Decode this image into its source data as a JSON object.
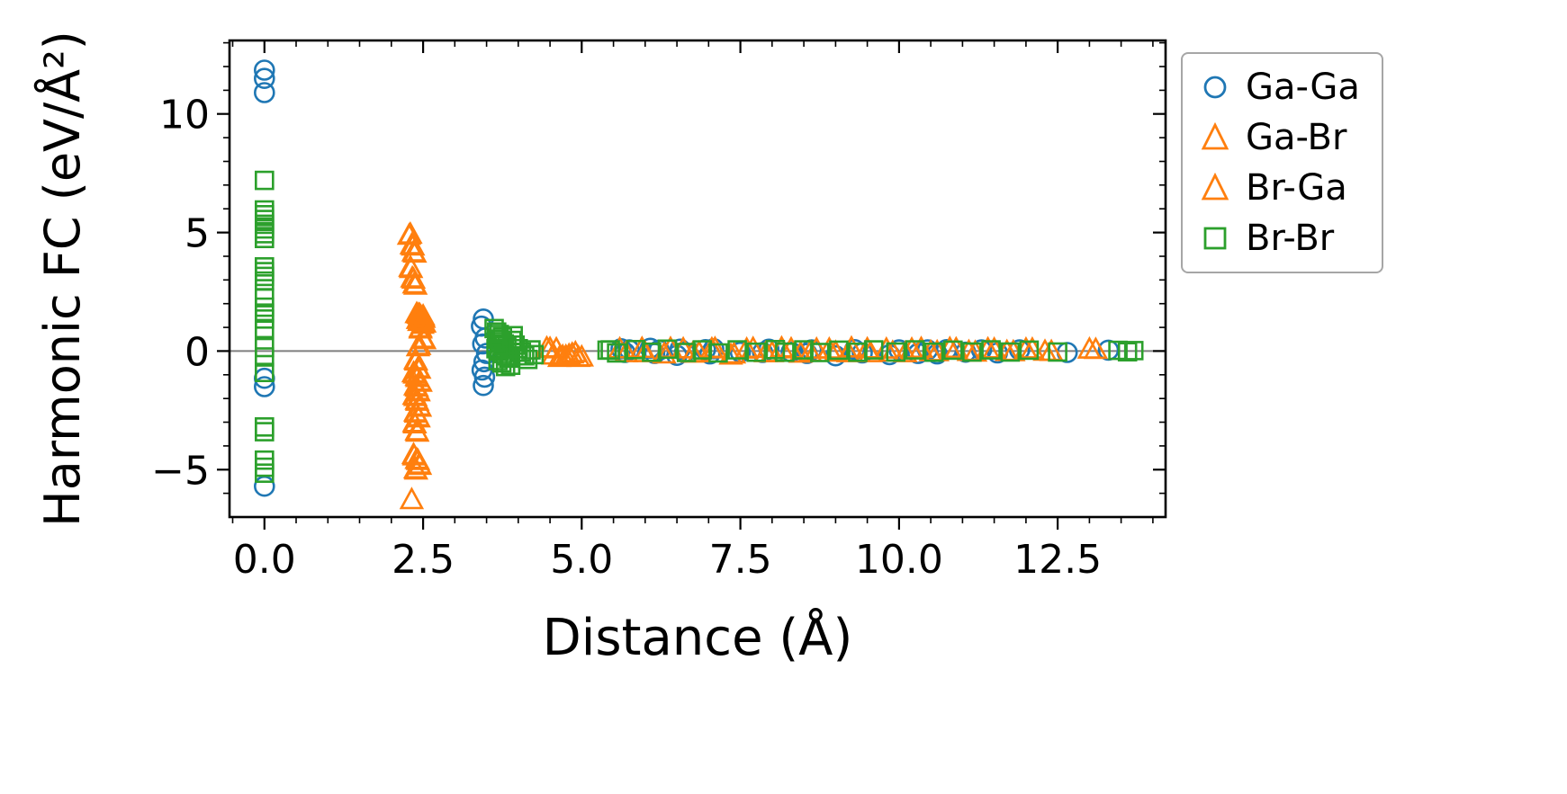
{
  "figure": {
    "background": "#ffffff"
  },
  "chart_data": {
    "type": "scatter",
    "title": "",
    "xlabel": "Distance (Å)",
    "ylabel": "Harmonic FC (eV/Å²)",
    "xlim": [
      -0.55,
      14.2
    ],
    "ylim": [
      -7.0,
      13.1
    ],
    "grid": false,
    "legend_position": "upper-right-outside",
    "x_ticks": {
      "values": [
        0,
        2.5,
        5,
        7.5,
        10,
        12.5
      ],
      "labels": [
        "0.0",
        "2.5",
        "5.0",
        "7.5",
        "10.0",
        "12.5"
      ]
    },
    "y_ticks": {
      "values": [
        -5,
        0,
        5,
        10
      ],
      "labels": [
        "−5",
        "0",
        "5",
        "10"
      ]
    },
    "minor_tick_step": {
      "x": 0.5,
      "y": 1
    },
    "zero_line": {
      "y": 0,
      "color": "#7f7f7f"
    },
    "series": [
      {
        "id": "ga-ga",
        "name": "Ga-Ga",
        "marker": "circle",
        "color": "#1f77b4",
        "points": [
          [
            0,
            11.85
          ],
          [
            0,
            11.5
          ],
          [
            0,
            10.9
          ],
          [
            0,
            -1.15
          ],
          [
            0,
            -1.5
          ],
          [
            0,
            -5.7
          ],
          [
            3.45,
            1.35
          ],
          [
            3.42,
            1.05
          ],
          [
            3.48,
            0.55
          ],
          [
            3.44,
            0.3
          ],
          [
            3.5,
            -0.1
          ],
          [
            3.46,
            -0.45
          ],
          [
            3.43,
            -0.8
          ],
          [
            3.47,
            -1.1
          ],
          [
            3.45,
            -1.45
          ],
          [
            5.62,
            0.1
          ],
          [
            5.68,
            -0.06
          ],
          [
            5.75,
            0.05
          ],
          [
            6.08,
            0.12
          ],
          [
            6.15,
            -0.1
          ],
          [
            6.22,
            0.04
          ],
          [
            6.5,
            -0.18
          ],
          [
            6.55,
            0.08
          ],
          [
            6.62,
            -0.05
          ],
          [
            6.95,
            0.06
          ],
          [
            7.02,
            -0.12
          ],
          [
            7.08,
            0.1
          ],
          [
            7.5,
            -0.05
          ],
          [
            7.85,
            -0.06
          ],
          [
            7.95,
            0.08
          ],
          [
            8.3,
            -0.04
          ],
          [
            8.55,
            -0.1
          ],
          [
            8.62,
            0.05
          ],
          [
            9.0,
            -0.2
          ],
          [
            9.3,
            0.06
          ],
          [
            9.42,
            -0.08
          ],
          [
            9.85,
            -0.15
          ],
          [
            10.0,
            0.05
          ],
          [
            10.3,
            -0.1
          ],
          [
            10.45,
            0.05
          ],
          [
            10.6,
            -0.12
          ],
          [
            10.75,
            0.06
          ],
          [
            11.05,
            -0.05
          ],
          [
            11.3,
            0.05
          ],
          [
            11.55,
            -0.08
          ],
          [
            11.9,
            0.05
          ],
          [
            12.65,
            -0.06
          ],
          [
            13.3,
            0.04
          ]
        ]
      },
      {
        "id": "ga-br",
        "name": "Ga-Br",
        "marker": "triangle",
        "color": "#ff7f0e",
        "points": [
          [
            2.3,
            4.9
          ],
          [
            2.32,
            4.45
          ],
          [
            2.35,
            4.15
          ],
          [
            2.3,
            3.5
          ],
          [
            2.33,
            3.05
          ],
          [
            2.36,
            2.8
          ],
          [
            2.4,
            1.55
          ],
          [
            2.45,
            1.5
          ],
          [
            2.5,
            1.45
          ],
          [
            2.42,
            1.3
          ],
          [
            2.48,
            1.25
          ],
          [
            2.52,
            1.15
          ],
          [
            2.46,
            0.95
          ],
          [
            2.5,
            0.5
          ],
          [
            2.44,
            0.2
          ],
          [
            2.38,
            -0.4
          ],
          [
            2.42,
            -0.75
          ],
          [
            2.35,
            -0.95
          ],
          [
            2.4,
            -1.1
          ],
          [
            2.45,
            -1.3
          ],
          [
            2.38,
            -1.5
          ],
          [
            2.42,
            -1.7
          ],
          [
            2.36,
            -1.9
          ],
          [
            2.4,
            -2.1
          ],
          [
            2.44,
            -2.35
          ],
          [
            2.38,
            -2.6
          ],
          [
            2.42,
            -2.8
          ],
          [
            2.36,
            -3.05
          ],
          [
            2.4,
            -3.4
          ],
          [
            2.35,
            -4.4
          ],
          [
            2.4,
            -4.6
          ],
          [
            2.44,
            -4.8
          ],
          [
            2.38,
            -5.0
          ],
          [
            2.32,
            -6.3
          ],
          [
            4.45,
            0.1
          ],
          [
            4.55,
            -0.2
          ],
          [
            4.6,
            0.06
          ],
          [
            4.65,
            -0.3
          ],
          [
            4.75,
            -0.25
          ],
          [
            4.85,
            -0.15
          ],
          [
            4.9,
            -0.1
          ],
          [
            4.95,
            -0.3
          ],
          [
            5.7,
            -0.1
          ],
          [
            5.95,
            0.08
          ],
          [
            6.3,
            -0.15
          ],
          [
            6.6,
            0.06
          ],
          [
            6.85,
            -0.1
          ],
          [
            7.1,
            0.08
          ],
          [
            7.35,
            -0.2
          ],
          [
            7.6,
            0.05
          ],
          [
            7.9,
            -0.1
          ],
          [
            8.15,
            0.1
          ],
          [
            8.45,
            -0.12
          ],
          [
            8.7,
            0.05
          ],
          [
            9.0,
            -0.08
          ],
          [
            9.25,
            0.1
          ],
          [
            9.55,
            -0.1
          ],
          [
            9.8,
            0.05
          ],
          [
            10.1,
            -0.1
          ],
          [
            10.35,
            0.08
          ],
          [
            10.6,
            -0.06
          ],
          [
            10.9,
            0.06
          ],
          [
            11.2,
            -0.08
          ],
          [
            11.5,
            0.05
          ],
          [
            11.8,
            -0.06
          ],
          [
            12.1,
            0.05
          ],
          [
            12.4,
            -0.05
          ],
          [
            13.0,
            0.05
          ]
        ]
      },
      {
        "id": "br-ga",
        "name": "Br-Ga",
        "marker": "triangle",
        "color": "#ff7f0e",
        "points": [
          [
            2.28,
            4.85
          ],
          [
            2.34,
            4.4
          ],
          [
            2.37,
            4.1
          ],
          [
            2.31,
            3.45
          ],
          [
            2.35,
            3.0
          ],
          [
            2.38,
            2.75
          ],
          [
            2.43,
            1.52
          ],
          [
            2.47,
            1.42
          ],
          [
            2.51,
            1.35
          ],
          [
            2.44,
            1.22
          ],
          [
            2.49,
            1.1
          ],
          [
            2.46,
            0.9
          ],
          [
            2.52,
            0.45
          ],
          [
            2.42,
            0.15
          ],
          [
            2.39,
            -0.45
          ],
          [
            2.44,
            -0.8
          ],
          [
            2.37,
            -1.0
          ],
          [
            2.41,
            -1.15
          ],
          [
            2.46,
            -1.35
          ],
          [
            2.4,
            -1.55
          ],
          [
            2.43,
            -1.75
          ],
          [
            2.38,
            -1.95
          ],
          [
            2.41,
            -2.15
          ],
          [
            2.45,
            -2.4
          ],
          [
            2.39,
            -2.65
          ],
          [
            2.43,
            -2.85
          ],
          [
            2.37,
            -3.1
          ],
          [
            2.41,
            -3.45
          ],
          [
            2.36,
            -4.45
          ],
          [
            2.42,
            -4.65
          ],
          [
            2.45,
            -4.85
          ],
          [
            2.39,
            -5.05
          ],
          [
            4.5,
            0.08
          ],
          [
            4.7,
            -0.25
          ],
          [
            4.8,
            -0.2
          ],
          [
            5.0,
            -0.28
          ],
          [
            5.6,
            0.06
          ],
          [
            6.0,
            -0.1
          ],
          [
            6.4,
            0.08
          ],
          [
            6.75,
            -0.12
          ],
          [
            7.05,
            0.06
          ],
          [
            7.4,
            -0.15
          ],
          [
            7.7,
            0.08
          ],
          [
            8.0,
            -0.1
          ],
          [
            8.3,
            0.06
          ],
          [
            8.6,
            -0.08
          ],
          [
            8.9,
            0.05
          ],
          [
            9.2,
            -0.1
          ],
          [
            9.5,
            0.06
          ],
          [
            9.9,
            -0.08
          ],
          [
            10.2,
            0.05
          ],
          [
            10.5,
            -0.06
          ],
          [
            10.8,
            0.08
          ],
          [
            11.1,
            -0.05
          ],
          [
            11.4,
            0.06
          ],
          [
            11.7,
            -0.05
          ],
          [
            12.0,
            0.05
          ],
          [
            12.3,
            -0.04
          ],
          [
            13.1,
            0.04
          ]
        ]
      },
      {
        "id": "br-br",
        "name": "Br-Br",
        "marker": "square",
        "color": "#2ca02c",
        "points": [
          [
            0,
            7.2
          ],
          [
            0,
            5.95
          ],
          [
            0,
            5.75
          ],
          [
            0,
            5.55
          ],
          [
            0,
            5.35
          ],
          [
            0,
            5.15
          ],
          [
            0,
            4.95
          ],
          [
            0,
            4.75
          ],
          [
            0,
            3.55
          ],
          [
            0,
            3.35
          ],
          [
            0,
            3.15
          ],
          [
            0,
            2.95
          ],
          [
            0,
            2.25
          ],
          [
            0,
            1.85
          ],
          [
            0,
            1.6
          ],
          [
            0,
            1.35
          ],
          [
            0,
            0.95
          ],
          [
            0,
            0.15
          ],
          [
            0,
            -0.25
          ],
          [
            0,
            -0.9
          ],
          [
            0,
            -3.2
          ],
          [
            0,
            -3.4
          ],
          [
            0,
            -4.6
          ],
          [
            0,
            -4.9
          ],
          [
            0,
            -5.15
          ],
          [
            3.62,
            0.95
          ],
          [
            3.66,
            0.8
          ],
          [
            3.7,
            0.7
          ],
          [
            3.75,
            0.6
          ],
          [
            3.68,
            0.5
          ],
          [
            3.72,
            0.4
          ],
          [
            3.78,
            0.3
          ],
          [
            3.82,
            0.2
          ],
          [
            3.65,
            0.1
          ],
          [
            3.7,
            0
          ],
          [
            3.76,
            -0.1
          ],
          [
            3.8,
            -0.2
          ],
          [
            3.85,
            -0.3
          ],
          [
            3.68,
            -0.4
          ],
          [
            3.74,
            -0.5
          ],
          [
            3.8,
            -0.65
          ],
          [
            3.9,
            0.45
          ],
          [
            3.92,
            0.65
          ],
          [
            3.95,
            0.25
          ],
          [
            4.0,
            0.1
          ],
          [
            4.05,
            -0.05
          ],
          [
            4.1,
            -0.2
          ],
          [
            4.15,
            -0.35
          ],
          [
            3.88,
            -0.6
          ],
          [
            4.2,
            0.05
          ],
          [
            4.25,
            -0.15
          ],
          [
            5.4,
            0.04
          ],
          [
            5.45,
            0.05
          ],
          [
            5.55,
            -0.08
          ],
          [
            5.85,
            0.06
          ],
          [
            6.1,
            -0.05
          ],
          [
            6.35,
            0.08
          ],
          [
            6.65,
            -0.06
          ],
          [
            6.9,
            0.05
          ],
          [
            7.15,
            -0.08
          ],
          [
            7.45,
            0.05
          ],
          [
            7.75,
            -0.05
          ],
          [
            8.05,
            0.06
          ],
          [
            8.2,
            -0.05
          ],
          [
            8.5,
            0.05
          ],
          [
            8.75,
            -0.06
          ],
          [
            9.05,
            0.04
          ],
          [
            9.35,
            -0.05
          ],
          [
            9.6,
            0.05
          ],
          [
            9.95,
            -0.04
          ],
          [
            10.25,
            0.05
          ],
          [
            10.55,
            -0.05
          ],
          [
            10.85,
            0.04
          ],
          [
            11.15,
            -0.04
          ],
          [
            11.45,
            0.05
          ],
          [
            11.75,
            -0.04
          ],
          [
            12.05,
            0.04
          ],
          [
            12.5,
            -0.04
          ],
          [
            13.45,
            0.03
          ],
          [
            13.6,
            -0.03
          ],
          [
            13.7,
            0.02
          ]
        ]
      }
    ]
  }
}
